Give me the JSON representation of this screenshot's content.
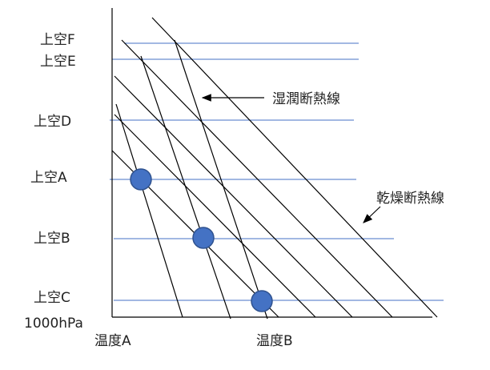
{
  "levels": [
    "上空F",
    "上空E",
    "上空D",
    "上空A",
    "上空B",
    "上空C"
  ],
  "base_label": "1000hPa",
  "temperatures": [
    "温度A",
    "温度B"
  ],
  "annotations": {
    "moist": "湿潤断熱線",
    "dry": "乾燥断熱線"
  }
}
